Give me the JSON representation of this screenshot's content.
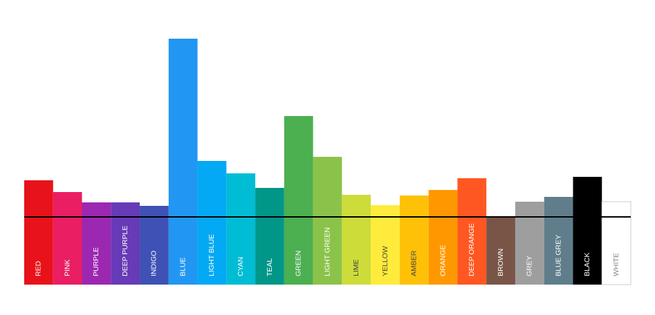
{
  "chart_data": {
    "type": "bar",
    "categories": [
      "RED",
      "PINK",
      "PURPLE",
      "DEEP PURPLE",
      "INDIGO",
      "BLUE",
      "LIGHT BLUE",
      "CYAN",
      "TEAL",
      "GREEN",
      "LIGHT GREEN",
      "LIME",
      "YELLOW",
      "AMBER",
      "ORANGE",
      "DEEP ORANGE",
      "BROWN",
      "GREY",
      "BLUE GREY",
      "BLACK",
      "WHITE"
    ],
    "values": [
      151,
      134,
      119,
      119,
      114,
      356,
      179,
      161,
      140,
      244,
      185,
      130,
      115,
      129,
      137,
      154,
      99,
      120,
      127,
      156,
      120
    ],
    "colors": [
      "#e8121a",
      "#e91e63",
      "#9c27b0",
      "#673ab7",
      "#3f51b5",
      "#2196f3",
      "#03a9f4",
      "#00bcd4",
      "#009688",
      "#4caf50",
      "#8bc34a",
      "#cddc39",
      "#ffeb3b",
      "#ffc107",
      "#ff9800",
      "#ff5722",
      "#795548",
      "#9e9e9e",
      "#607d8b",
      "#000000",
      "#ffffff"
    ],
    "ylim": [
      0,
      360
    ],
    "reference_line": 98
  }
}
